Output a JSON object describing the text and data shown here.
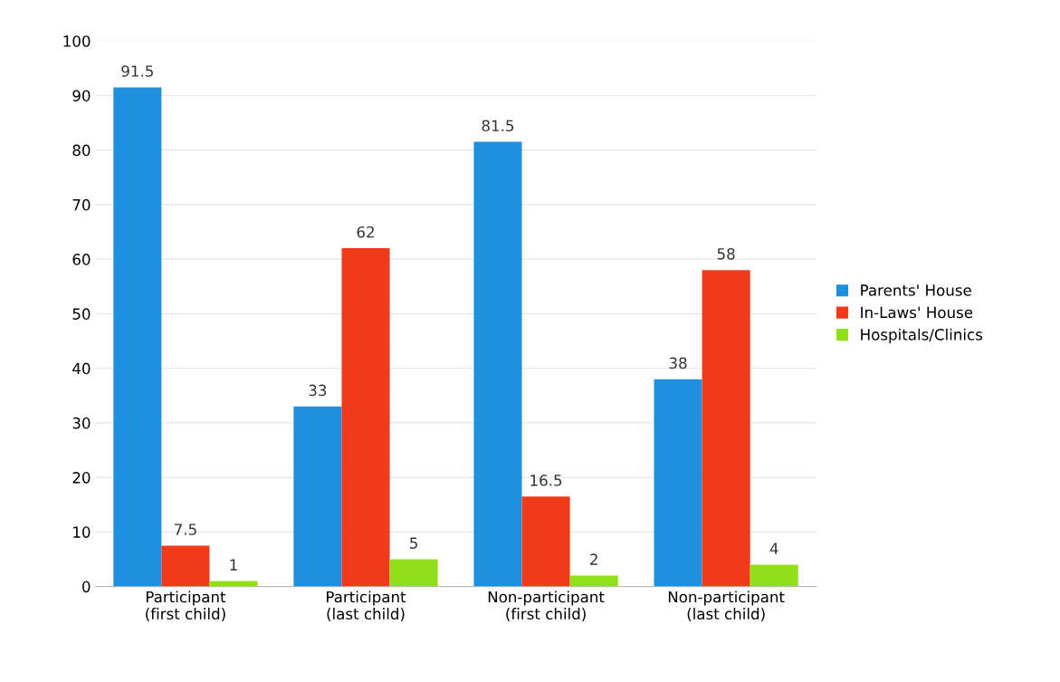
{
  "chart_data": {
    "type": "bar",
    "categories": [
      "Participant (first child)",
      "Participant (last child)",
      "Non-participant (first child)",
      "Non-participant (last child)"
    ],
    "series": [
      {
        "name": "Parents' House",
        "color": "#1f8fe0",
        "values": [
          91.5,
          33,
          81.5,
          38
        ]
      },
      {
        "name": "In-Laws' House",
        "color": "#f03a1a",
        "values": [
          7.5,
          62,
          16.5,
          58
        ]
      },
      {
        "name": "Hospitals/Clinics",
        "color": "#8fe01a",
        "values": [
          1,
          5,
          2,
          4
        ]
      }
    ],
    "ylim": [
      0,
      100
    ],
    "yticks": [
      0,
      10,
      20,
      30,
      40,
      50,
      60,
      70,
      80,
      90,
      100
    ],
    "grid": "y",
    "legend": "right",
    "data_labels": true
  }
}
